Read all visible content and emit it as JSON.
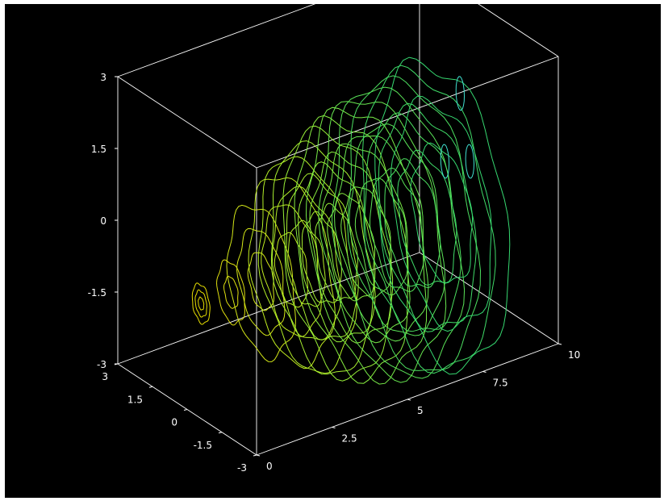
{
  "chart_data": {
    "type": "contour3d",
    "title": "",
    "background_color": "#000000",
    "box_color": "#ffffff",
    "axes": {
      "x": {
        "label": "",
        "range": [
          0,
          10
        ],
        "ticks": [
          0,
          2.5,
          5,
          7.5,
          10
        ],
        "tick_labels": [
          "0",
          "2.5",
          "5",
          "7.5",
          "10"
        ]
      },
      "y": {
        "label": "",
        "range": [
          -3,
          3
        ],
        "ticks": [
          -3,
          -1.5,
          0,
          1.5,
          3
        ],
        "tick_labels": [
          "-3",
          "-1.5",
          "0",
          "1.5",
          "3"
        ]
      },
      "z": {
        "label": "",
        "range": [
          -3,
          3
        ],
        "ticks": [
          -3,
          -1.5,
          0,
          1.5,
          3
        ],
        "tick_labels": [
          "-3",
          "-1.5",
          "0",
          "1.5",
          "3"
        ]
      }
    },
    "slices": [
      {
        "x": 0.0,
        "rings": [
          0.12,
          0.25,
          0.38
        ],
        "color": "#e8e000"
      },
      {
        "x": 1.0,
        "rings": [
          0.3,
          0.6
        ],
        "color": "#e0e010"
      },
      {
        "x": 2.0,
        "rings": [
          0.55,
          1.0,
          1.45
        ],
        "color": "#d4e818"
      },
      {
        "x": 3.0,
        "rings": [
          0.7,
          1.25,
          1.8
        ],
        "color": "#c0ec20"
      },
      {
        "x": 3.5,
        "rings": [
          0.8,
          1.45,
          2.05
        ],
        "color": "#b4f028"
      },
      {
        "x": 4.0,
        "rings": [
          0.85,
          1.55,
          2.2
        ],
        "color": "#a8f030"
      },
      {
        "x": 4.5,
        "rings": [
          0.9,
          1.65,
          2.35
        ],
        "color": "#98f038"
      },
      {
        "x": 5.0,
        "rings": [
          1.0,
          1.75,
          2.45
        ],
        "color": "#88ee40"
      },
      {
        "x": 5.5,
        "rings": [
          1.05,
          1.85,
          2.55
        ],
        "color": "#78ec48"
      },
      {
        "x": 6.0,
        "rings": [
          1.1,
          1.95,
          2.65
        ],
        "color": "#68e850"
      },
      {
        "x": 6.5,
        "rings": [
          1.15,
          2.0,
          2.75
        ],
        "color": "#5ae458"
      },
      {
        "x": 7.0,
        "rings": [
          1.2,
          2.05,
          2.8
        ],
        "color": "#4ce060"
      },
      {
        "x": 7.5,
        "rings": [
          1.25,
          2.1,
          2.85
        ],
        "color": "#40dc68"
      },
      {
        "x": 8.0,
        "rings": [
          1.3,
          2.15,
          2.9
        ],
        "color": "#36d870"
      }
    ],
    "highlight_color": "#40e0d0"
  }
}
